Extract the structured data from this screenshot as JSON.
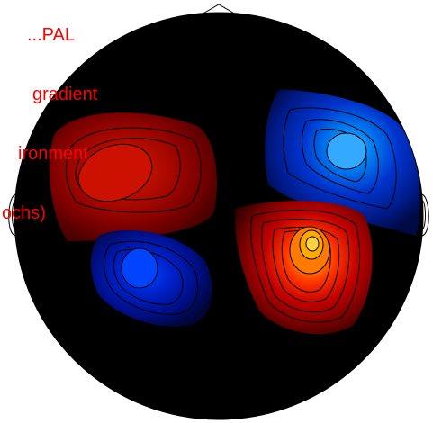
{
  "caption": {
    "lines": [
      "...PAL",
      "gradient",
      "ironment",
      "ochs)"
    ]
  },
  "colors": {
    "caption": "#ff0000",
    "head_fill": "#000000",
    "outline": "#000000",
    "contour_line": "#000000",
    "positive_pole": "#cc1100",
    "negative_pole": "#0033cc"
  },
  "map": {
    "type": "topographic-field-map",
    "sources": [
      {
        "name": "upper-left-positive",
        "polarity": "positive",
        "intensity": 0.45
      },
      {
        "name": "upper-right-negative",
        "polarity": "negative",
        "intensity": 0.9
      },
      {
        "name": "lower-left-negative",
        "polarity": "negative",
        "intensity": 0.7
      },
      {
        "name": "lower-right-positive",
        "polarity": "positive",
        "intensity": 1.0
      }
    ]
  }
}
